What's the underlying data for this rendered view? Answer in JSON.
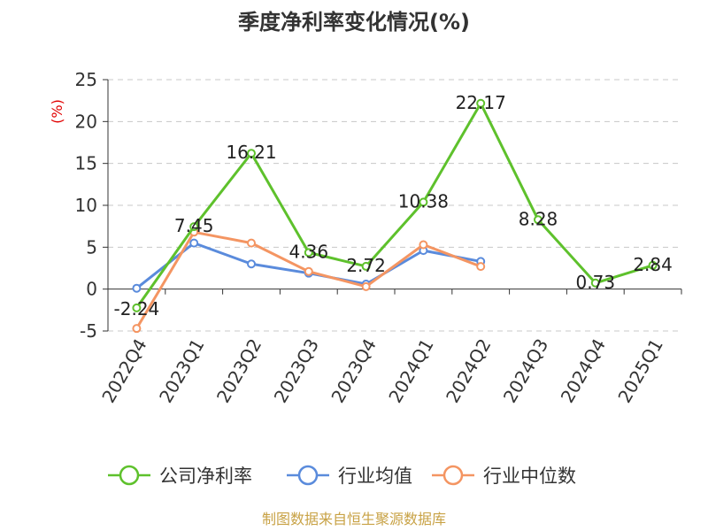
{
  "chart_data": {
    "type": "line",
    "title": "季度净利率变化情况(%)",
    "ylabel": "(%)",
    "categories": [
      "2022Q4",
      "2023Q1",
      "2023Q2",
      "2023Q3",
      "2023Q4",
      "2024Q1",
      "2024Q2",
      "2024Q3",
      "2024Q4",
      "2025Q1"
    ],
    "ylim": [
      -5,
      25
    ],
    "yticks": [
      25,
      20,
      15,
      10,
      5,
      0,
      -5
    ],
    "grid": true,
    "legend_position": "bottom",
    "series": [
      {
        "name": "公司净利率",
        "color": "#5ec12c",
        "values": [
          -2.24,
          7.45,
          16.21,
          4.36,
          2.72,
          10.38,
          22.17,
          8.28,
          0.73,
          2.84
        ],
        "labels": [
          "-2.24",
          "7.45",
          "16.21",
          "4.36",
          "2.72",
          "10.38",
          "22.17",
          "8.28",
          "0.73",
          "2.84"
        ]
      },
      {
        "name": "行业均值",
        "color": "#5a8bdc",
        "values": [
          0.1,
          5.5,
          3.0,
          1.9,
          0.6,
          4.6,
          3.3,
          null,
          null,
          null
        ]
      },
      {
        "name": "行业中位数",
        "color": "#f49562",
        "values": [
          -4.7,
          6.8,
          5.5,
          2.1,
          0.3,
          5.3,
          2.7,
          null,
          null,
          null
        ]
      }
    ]
  },
  "source": "制图数据来自恒生聚源数据库"
}
